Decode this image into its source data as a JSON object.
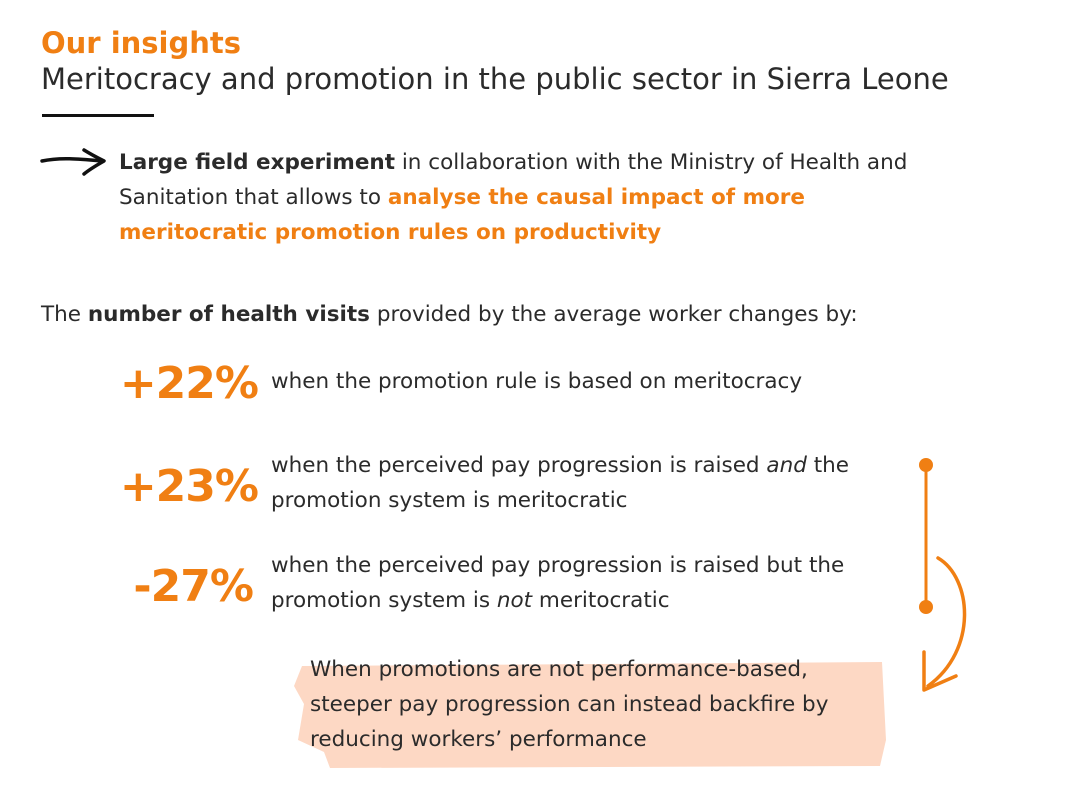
{
  "header": {
    "eyebrow": "Our insights",
    "title": "Meritocracy and promotion in the public sector in Sierra Leone"
  },
  "intro": {
    "bold_lead": "Large field experiment",
    "middle": " in collaboration with the Ministry of Health and Sanitation that allows to ",
    "highlight": "analyse the causal impact of more meritocratic promotion rules on productivity"
  },
  "lead": {
    "pre": "The ",
    "bold": "number of health visits",
    "post": " provided by the average  worker changes by:"
  },
  "findings": [
    {
      "value": "+22%",
      "text": "when the promotion rule is based on meritocracy"
    },
    {
      "value": "+23%",
      "text_pre": "when the perceived pay progression is raised ",
      "text_em": "and",
      "text_post": " the promotion system is meritocratic"
    },
    {
      "value": "-27%",
      "text_pre": "when the perceived pay progression is raised but the promotion system is ",
      "text_em": "not",
      "text_post": " meritocratic"
    }
  ],
  "callout": {
    "line1": "When promotions are not performance-based,",
    "line2": "steeper pay progression can instead backfire by",
    "line3": "reducing workers’ performance"
  },
  "colors": {
    "accent": "#f07f13",
    "highlight_fill": "#fdd8c4",
    "text": "#2b2b2b"
  },
  "icons": [
    "hand-drawn-arrow-icon",
    "curved-arrow-icon"
  ]
}
